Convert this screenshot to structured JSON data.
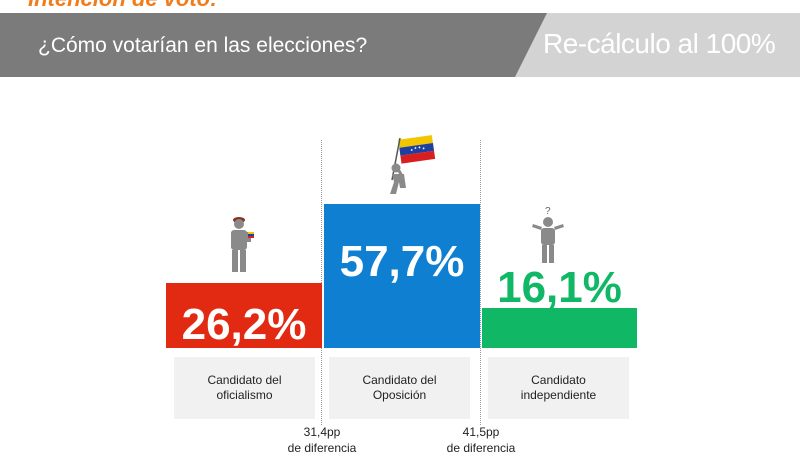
{
  "header": {
    "top_title": "Intención de voto:",
    "question": "¿Cómo votarían en las elecciones?",
    "recalc_label": "Re-cálculo al 100%"
  },
  "colors": {
    "oficialismo": "#e22a12",
    "oposicion": "#0e7fd1",
    "independiente": "#10b866",
    "banner_dark": "#7b7b7b",
    "banner_light": "#d3d3d3",
    "accent": "#f07c1a"
  },
  "chart_data": {
    "type": "bar",
    "title": "",
    "categories": [
      "Candidato del oficialismo",
      "Candidato del Oposición",
      "Candidato independiente"
    ],
    "values": [
      26.2,
      57.7,
      16.1
    ],
    "value_labels": [
      "26,2%",
      "57,7%",
      "16,1%"
    ],
    "unit": "%",
    "ylim": [
      0,
      100
    ],
    "grid": false,
    "legend": "none",
    "icons": [
      "soldier-icon",
      "flag-bearer-icon",
      "question-person-icon"
    ],
    "annotations": [
      {
        "line1": "31,4pp",
        "line2": "de diferencia"
      },
      {
        "line1": "41,5pp",
        "line2": "de diferencia"
      }
    ]
  },
  "labels": [
    {
      "line1": "Candidato del",
      "line2": "oficialismo"
    },
    {
      "line1": "Candidato del",
      "line2": "Oposición"
    },
    {
      "line1": "Candidato",
      "line2": "independiente"
    }
  ]
}
